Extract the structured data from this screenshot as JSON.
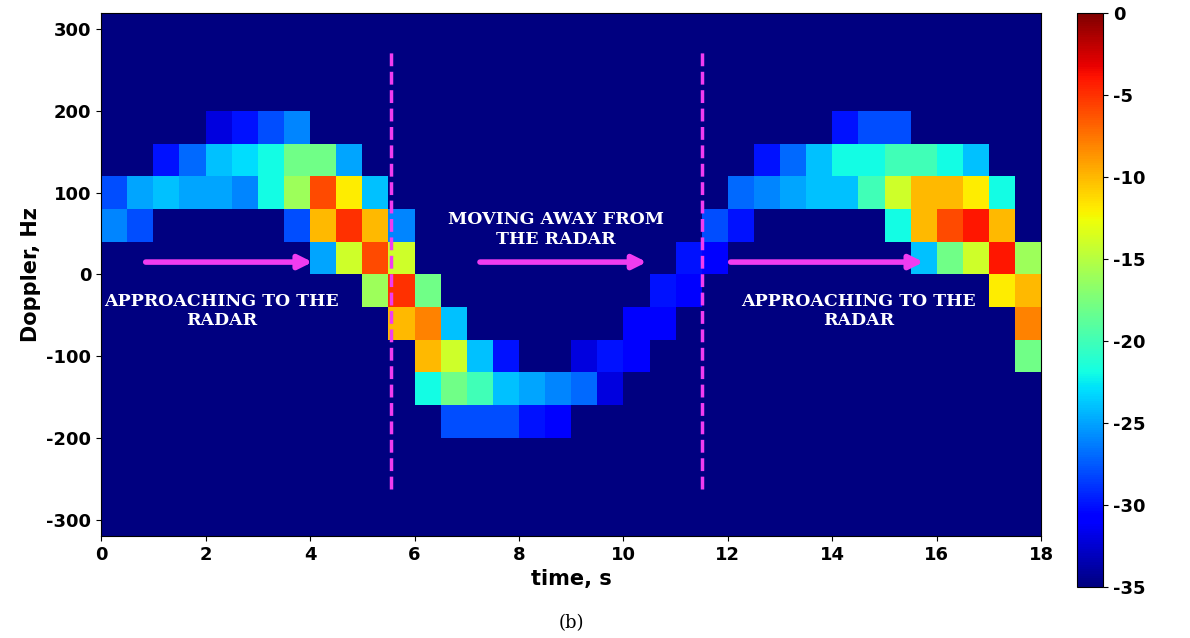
{
  "chart_data": {
    "type": "heatmap",
    "x_label": "time, s",
    "y_label": "Doppler, Hz",
    "caption": "(b)",
    "xlim": [
      0,
      18
    ],
    "xticks": [
      0,
      2,
      4,
      6,
      8,
      10,
      12,
      14,
      16,
      18
    ],
    "ylim": [
      -320,
      320
    ],
    "yticks": [
      -300,
      -200,
      -100,
      0,
      100,
      200,
      300
    ],
    "annotations": [
      "APPROACHING TO THE\nRADAR",
      "MOVING AWAY FROM\nTHE RADAR",
      "APPROACHING TO THE\nRADAR"
    ],
    "dividers": [
      5.55,
      11.5
    ],
    "colorbar": {
      "range": [
        -35,
        0
      ],
      "ticks": [
        0,
        -5,
        -10,
        -15,
        -20,
        -25,
        -30,
        -35
      ]
    },
    "time_edges": [
      0,
      0.5,
      1,
      1.5,
      2,
      2.5,
      3,
      3.5,
      4,
      4.5,
      5,
      5.5,
      6,
      6.5,
      7,
      7.5,
      8,
      8.5,
      9,
      9.5,
      10,
      10.5,
      11,
      11.5,
      12,
      12.5,
      13,
      13.5,
      14,
      14.5,
      15,
      15.5,
      16,
      16.5,
      17,
      17.5,
      18
    ],
    "doppler_edges": [
      -320,
      -280,
      -240,
      -200,
      -160,
      -120,
      -80,
      -40,
      0,
      40,
      80,
      120,
      160,
      200,
      240,
      280,
      320
    ],
    "cells_by_time": [
      [
        -35,
        -35,
        -35,
        -35,
        -35,
        -35,
        -35,
        -35,
        -35,
        -26,
        -28,
        -35,
        -35,
        -35,
        -35,
        -35
      ],
      [
        -35,
        -35,
        -35,
        -35,
        -35,
        -35,
        -35,
        -35,
        -35,
        -28,
        -25,
        -35,
        -35,
        -35,
        -35,
        -35
      ],
      [
        -35,
        -35,
        -35,
        -35,
        -35,
        -35,
        -35,
        -35,
        -35,
        -35,
        -24,
        -30,
        -35,
        -35,
        -35,
        -35
      ],
      [
        -35,
        -35,
        -35,
        -35,
        -35,
        -35,
        -35,
        -35,
        -35,
        -35,
        -25,
        -27,
        -35,
        -35,
        -35,
        -35
      ],
      [
        -35,
        -35,
        -35,
        -35,
        -35,
        -35,
        -35,
        -35,
        -35,
        -35,
        -25,
        -24,
        -32,
        -35,
        -35,
        -35
      ],
      [
        -35,
        -35,
        -35,
        -35,
        -35,
        -35,
        -35,
        -35,
        -35,
        -35,
        -26,
        -23,
        -30,
        -35,
        -35,
        -35
      ],
      [
        -35,
        -35,
        -35,
        -35,
        -35,
        -35,
        -35,
        -35,
        -35,
        -35,
        -22,
        -22,
        -28,
        -35,
        -35,
        -35
      ],
      [
        -35,
        -35,
        -35,
        -35,
        -35,
        -35,
        -35,
        -35,
        -35,
        -28,
        -16,
        -18,
        -26,
        -35,
        -35,
        -35
      ],
      [
        -35,
        -35,
        -35,
        -35,
        -35,
        -35,
        -35,
        -35,
        -25,
        -10,
        -6,
        -18,
        -35,
        -35,
        -35,
        -35
      ],
      [
        -35,
        -35,
        -35,
        -35,
        -35,
        -35,
        -35,
        -35,
        -14,
        -5,
        -12,
        -25,
        -35,
        -35,
        -35,
        -35
      ],
      [
        -35,
        -35,
        -35,
        -35,
        -35,
        -35,
        -35,
        -16,
        -6,
        -10,
        -24,
        -35,
        -35,
        -35,
        -35,
        -35
      ],
      [
        -35,
        -35,
        -35,
        -35,
        -35,
        -35,
        -10,
        -5,
        -14,
        -26,
        -35,
        -35,
        -35,
        -35,
        -35,
        -35
      ],
      [
        -35,
        -35,
        -35,
        -35,
        -22,
        -10,
        -8,
        -18,
        -35,
        -35,
        -35,
        -35,
        -35,
        -35,
        -35,
        -35
      ],
      [
        -35,
        -35,
        -35,
        -28,
        -18,
        -14,
        -24,
        -35,
        -35,
        -35,
        -35,
        -35,
        -35,
        -35,
        -35,
        -35
      ],
      [
        -35,
        -35,
        -35,
        -28,
        -20,
        -24,
        -35,
        -35,
        -35,
        -35,
        -35,
        -35,
        -35,
        -35,
        -35,
        -35
      ],
      [
        -35,
        -35,
        -35,
        -28,
        -24,
        -30,
        -35,
        -35,
        -35,
        -35,
        -35,
        -35,
        -35,
        -35,
        -35,
        -35
      ],
      [
        -35,
        -35,
        -35,
        -30,
        -25,
        -35,
        -35,
        -35,
        -35,
        -35,
        -35,
        -35,
        -35,
        -35,
        -35,
        -35
      ],
      [
        -35,
        -35,
        -35,
        -31,
        -26,
        -35,
        -35,
        -35,
        -35,
        -35,
        -35,
        -35,
        -35,
        -35,
        -35,
        -35
      ],
      [
        -35,
        -35,
        -35,
        -35,
        -27,
        -32,
        -35,
        -35,
        -35,
        -35,
        -35,
        -35,
        -35,
        -35,
        -35,
        -35
      ],
      [
        -35,
        -35,
        -35,
        -35,
        -32,
        -30,
        -35,
        -35,
        -35,
        -35,
        -35,
        -35,
        -35,
        -35,
        -35,
        -35
      ],
      [
        -35,
        -35,
        -35,
        -35,
        -35,
        -31,
        -31,
        -35,
        -35,
        -35,
        -35,
        -35,
        -35,
        -35,
        -35,
        -35
      ],
      [
        -35,
        -35,
        -35,
        -35,
        -35,
        -35,
        -31,
        -30,
        -35,
        -35,
        -35,
        -35,
        -35,
        -35,
        -35,
        -35
      ],
      [
        -35,
        -35,
        -35,
        -35,
        -35,
        -35,
        -35,
        -31,
        -30,
        -35,
        -35,
        -35,
        -35,
        -35,
        -35,
        -35
      ],
      [
        -35,
        -35,
        -35,
        -35,
        -35,
        -35,
        -35,
        -35,
        -31,
        -28,
        -35,
        -35,
        -35,
        -35,
        -35,
        -35
      ],
      [
        -35,
        -35,
        -35,
        -35,
        -35,
        -35,
        -35,
        -35,
        -35,
        -30,
        -27,
        -35,
        -35,
        -35,
        -35,
        -35
      ],
      [
        -35,
        -35,
        -35,
        -35,
        -35,
        -35,
        -35,
        -35,
        -35,
        -35,
        -26,
        -30,
        -35,
        -35,
        -35,
        -35
      ],
      [
        -35,
        -35,
        -35,
        -35,
        -35,
        -35,
        -35,
        -35,
        -35,
        -35,
        -25,
        -27,
        -35,
        -35,
        -35,
        -35
      ],
      [
        -35,
        -35,
        -35,
        -35,
        -35,
        -35,
        -35,
        -35,
        -35,
        -35,
        -24,
        -24,
        -35,
        -35,
        -35,
        -35
      ],
      [
        -35,
        -35,
        -35,
        -35,
        -35,
        -35,
        -35,
        -35,
        -35,
        -35,
        -24,
        -22,
        -30,
        -35,
        -35,
        -35
      ],
      [
        -35,
        -35,
        -35,
        -35,
        -35,
        -35,
        -35,
        -35,
        -35,
        -35,
        -20,
        -22,
        -28,
        -35,
        -35,
        -35
      ],
      [
        -35,
        -35,
        -35,
        -35,
        -35,
        -35,
        -35,
        -35,
        -35,
        -22,
        -14,
        -20,
        -28,
        -35,
        -35,
        -35
      ],
      [
        -35,
        -35,
        -35,
        -35,
        -35,
        -35,
        -35,
        -35,
        -24,
        -10,
        -10,
        -20,
        -35,
        -35,
        -35,
        -35
      ],
      [
        -35,
        -35,
        -35,
        -35,
        -35,
        -35,
        -35,
        -35,
        -18,
        -6,
        -10,
        -22,
        -35,
        -35,
        -35,
        -35
      ],
      [
        -35,
        -35,
        -35,
        -35,
        -35,
        -35,
        -35,
        -35,
        -14,
        -4,
        -12,
        -24,
        -35,
        -35,
        -35,
        -35
      ],
      [
        -35,
        -35,
        -35,
        -35,
        -35,
        -35,
        -35,
        -12,
        -4,
        -10,
        -22,
        -35,
        -35,
        -35,
        -35,
        -35
      ],
      [
        -35,
        -35,
        -35,
        -35,
        -35,
        -18,
        -8,
        -10,
        -16,
        -35,
        -35,
        -35,
        -35,
        -35,
        -35,
        -35
      ]
    ]
  }
}
